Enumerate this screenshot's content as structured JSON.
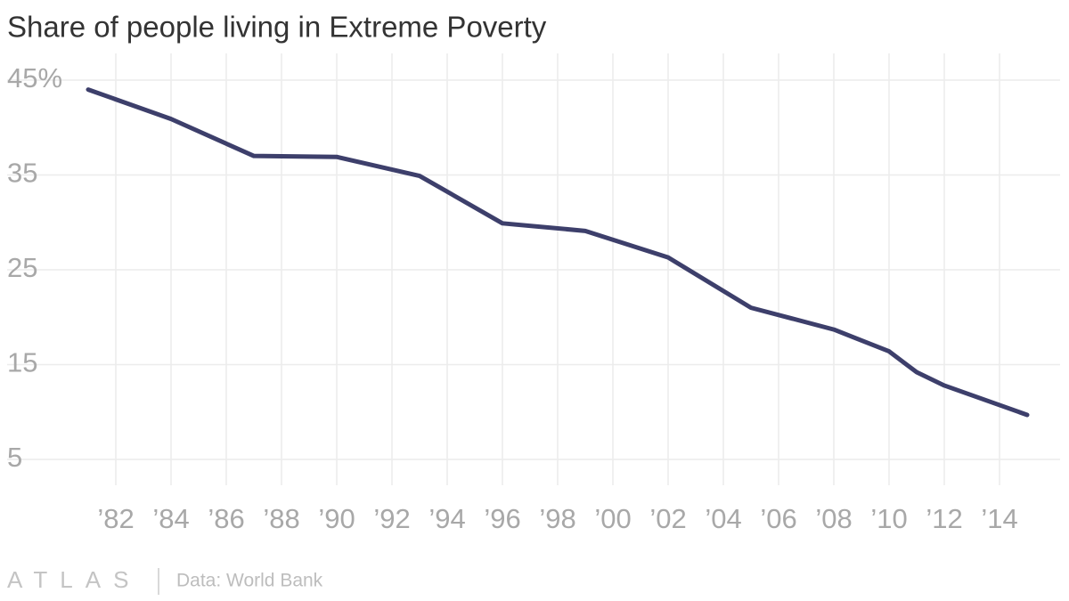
{
  "chart_data": {
    "type": "line",
    "title": "Share of people living in Extreme Poverty",
    "source": "Data: World Bank",
    "logo": "ATLAS",
    "x": [
      1981,
      1984,
      1987,
      1990,
      1993,
      1996,
      1999,
      2002,
      2005,
      2008,
      2010,
      2011,
      2012,
      2015
    ],
    "series": [
      {
        "name": "Extreme poverty",
        "color": "#3d3f6b",
        "values": [
          44.0,
          40.9,
          37.0,
          36.9,
          34.9,
          29.9,
          29.1,
          26.3,
          21.0,
          18.7,
          16.4,
          14.2,
          12.8,
          9.7
        ]
      }
    ],
    "xlim": [
      1980,
      2016
    ],
    "xticks": [
      {
        "value": 1982,
        "label": "’82"
      },
      {
        "value": 1984,
        "label": "’84"
      },
      {
        "value": 1986,
        "label": "’86"
      },
      {
        "value": 1988,
        "label": "’88"
      },
      {
        "value": 1990,
        "label": "’90"
      },
      {
        "value": 1992,
        "label": "’92"
      },
      {
        "value": 1994,
        "label": "’94"
      },
      {
        "value": 1996,
        "label": "’96"
      },
      {
        "value": 1998,
        "label": "’98"
      },
      {
        "value": 2000,
        "label": "’00"
      },
      {
        "value": 2002,
        "label": "’02"
      },
      {
        "value": 2004,
        "label": "’04"
      },
      {
        "value": 2006,
        "label": "’06"
      },
      {
        "value": 2008,
        "label": "’08"
      },
      {
        "value": 2010,
        "label": "’10"
      },
      {
        "value": 2012,
        "label": "’12"
      },
      {
        "value": 2014,
        "label": "’14"
      }
    ],
    "ylim": [
      2,
      48
    ],
    "yticks": [
      {
        "value": 45,
        "label": "45%"
      },
      35,
      25,
      15,
      5
    ],
    "grid": true
  }
}
